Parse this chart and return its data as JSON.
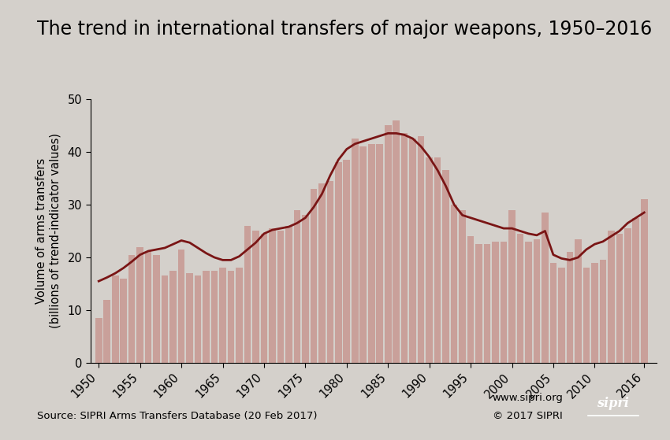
{
  "title": "The trend in international transfers of major weapons, 1950–2016",
  "ylabel_line1": "Volume of arms transfers",
  "ylabel_line2": "(billions of trend-indicator values)",
  "source_text": "Source: SIPRI Arms Transfers Database (20 Feb 2017)",
  "website_text": "www.sipri.org",
  "copyright_text": "© 2017 SIPRI",
  "background_color": "#d4d0cb",
  "bar_color": "#c9a09a",
  "line_color": "#7a1515",
  "years": [
    1950,
    1951,
    1952,
    1953,
    1954,
    1955,
    1956,
    1957,
    1958,
    1959,
    1960,
    1961,
    1962,
    1963,
    1964,
    1965,
    1966,
    1967,
    1968,
    1969,
    1970,
    1971,
    1972,
    1973,
    1974,
    1975,
    1976,
    1977,
    1978,
    1979,
    1980,
    1981,
    1982,
    1983,
    1984,
    1985,
    1986,
    1987,
    1988,
    1989,
    1990,
    1991,
    1992,
    1993,
    1994,
    1995,
    1996,
    1997,
    1998,
    1999,
    2000,
    2001,
    2002,
    2003,
    2004,
    2005,
    2006,
    2007,
    2008,
    2009,
    2010,
    2011,
    2012,
    2013,
    2014,
    2015,
    2016
  ],
  "bar_values": [
    8.5,
    12.0,
    16.5,
    16.0,
    20.5,
    22.0,
    21.0,
    20.5,
    16.5,
    17.5,
    21.5,
    17.0,
    16.5,
    17.5,
    17.5,
    18.0,
    17.5,
    18.0,
    26.0,
    25.0,
    24.5,
    25.5,
    25.0,
    26.0,
    29.0,
    28.0,
    33.0,
    34.0,
    34.5,
    38.0,
    38.5,
    42.5,
    41.0,
    41.5,
    41.5,
    45.0,
    46.0,
    43.5,
    42.5,
    43.0,
    39.0,
    39.0,
    36.5,
    30.0,
    29.0,
    24.0,
    22.5,
    22.5,
    23.0,
    23.0,
    29.0,
    24.5,
    23.0,
    23.5,
    28.5,
    19.0,
    18.0,
    21.0,
    23.5,
    18.0,
    19.0,
    19.5,
    25.0,
    24.5,
    25.5,
    27.5,
    31.0
  ],
  "trend_values": [
    15.5,
    16.2,
    17.0,
    18.0,
    19.2,
    20.5,
    21.2,
    21.5,
    21.8,
    22.5,
    23.2,
    22.8,
    21.8,
    20.8,
    20.0,
    19.5,
    19.5,
    20.2,
    21.5,
    22.8,
    24.5,
    25.2,
    25.5,
    25.8,
    26.5,
    27.5,
    29.5,
    32.0,
    35.5,
    38.5,
    40.5,
    41.5,
    42.0,
    42.5,
    43.0,
    43.5,
    43.5,
    43.2,
    42.5,
    41.0,
    39.0,
    36.5,
    33.5,
    30.0,
    28.0,
    27.5,
    27.0,
    26.5,
    26.0,
    25.5,
    25.5,
    25.0,
    24.5,
    24.2,
    25.0,
    20.5,
    19.8,
    19.5,
    20.0,
    21.5,
    22.5,
    23.0,
    24.0,
    25.0,
    26.5,
    27.5,
    28.5
  ],
  "ylim": [
    0,
    50
  ],
  "yticks": [
    0,
    10,
    20,
    30,
    40,
    50
  ],
  "xticks": [
    1950,
    1955,
    1960,
    1965,
    1970,
    1975,
    1980,
    1985,
    1990,
    1995,
    2000,
    2005,
    2010,
    2016
  ],
  "title_fontsize": 17,
  "axis_fontsize": 10.5,
  "tick_fontsize": 10.5,
  "source_fontsize": 9.5,
  "logo_color": "#d0021b"
}
